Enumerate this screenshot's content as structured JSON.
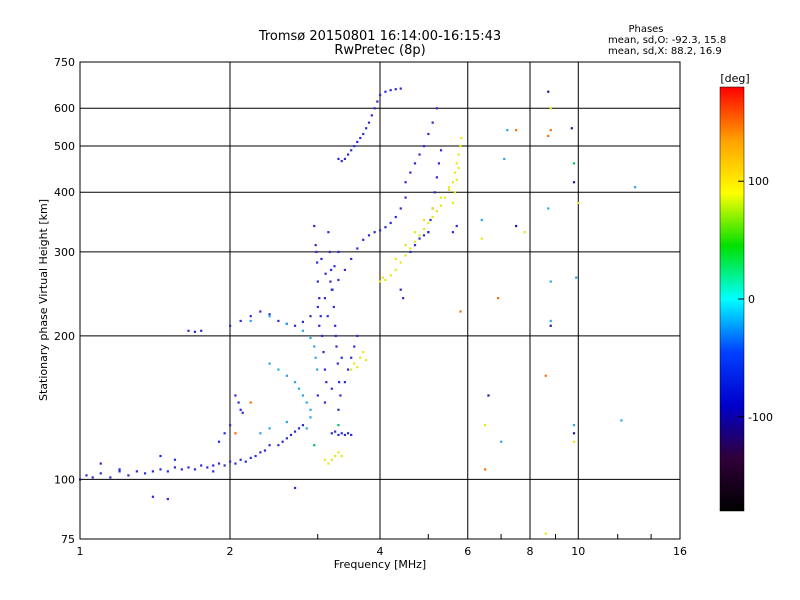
{
  "chart_data": {
    "type": "scatter",
    "title": "Tromsø 20150801 16:14:00-16:15:43",
    "subtitle": "RwPretec (8p)",
    "xlabel": "Frequency [MHz]",
    "ylabel": "Stationary phase Virtual Height [km]",
    "x_scale": "log",
    "y_scale": "log",
    "xlim": [
      1,
      16
    ],
    "ylim": [
      75,
      750
    ],
    "x_ticks": [
      "1",
      "2",
      "4",
      "6",
      "8",
      "10",
      "16"
    ],
    "y_ticks": [
      "75",
      "100",
      "200",
      "300",
      "400",
      "500",
      "600",
      "750"
    ],
    "grid": true,
    "phases_box": {
      "title": "Phases",
      "line1": "mean, sd,O: -92.3, 15.8",
      "line2": "mean, sd,X:  88.2, 16.9"
    },
    "colorbar": {
      "label": "[deg]",
      "ticks": [
        "100",
        "0",
        "-100"
      ],
      "colors": [
        "#ff0000",
        "#ffa000",
        "#ffff00",
        "#00e000",
        "#00ffff",
        "#0040ff",
        "#0000cc",
        "#30003a",
        "#000000"
      ]
    },
    "series": [
      {
        "color": "#2a2ad8",
        "points": [
          [
            1.0,
            100
          ],
          [
            1.03,
            102
          ],
          [
            1.06,
            101
          ],
          [
            1.1,
            103
          ],
          [
            1.15,
            101
          ],
          [
            1.2,
            104
          ],
          [
            1.25,
            102
          ],
          [
            1.3,
            104
          ],
          [
            1.35,
            103
          ],
          [
            1.4,
            104
          ],
          [
            1.45,
            105
          ],
          [
            1.5,
            104
          ],
          [
            1.55,
            106
          ],
          [
            1.6,
            105
          ],
          [
            1.65,
            106
          ],
          [
            1.7,
            105
          ],
          [
            1.75,
            107
          ],
          [
            1.8,
            106
          ],
          [
            1.85,
            107
          ],
          [
            1.9,
            108
          ],
          [
            1.95,
            107
          ],
          [
            2.0,
            109
          ],
          [
            2.05,
            108
          ],
          [
            2.1,
            110
          ],
          [
            2.15,
            109
          ],
          [
            2.2,
            111
          ],
          [
            2.25,
            112
          ],
          [
            2.3,
            114
          ],
          [
            2.35,
            115
          ],
          [
            2.4,
            118
          ],
          [
            1.1,
            108
          ],
          [
            1.2,
            105
          ],
          [
            1.45,
            112
          ],
          [
            1.55,
            110
          ],
          [
            1.85,
            104
          ],
          [
            1.4,
            92
          ],
          [
            1.5,
            91
          ],
          [
            2.7,
            96
          ],
          [
            2.05,
            150
          ],
          [
            2.08,
            145
          ],
          [
            2.1,
            140
          ],
          [
            2.12,
            138
          ],
          [
            2.0,
            130
          ],
          [
            1.95,
            125
          ],
          [
            1.9,
            120
          ],
          [
            2.5,
            118
          ],
          [
            2.55,
            120
          ],
          [
            2.6,
            122
          ],
          [
            2.65,
            124
          ],
          [
            2.7,
            126
          ],
          [
            2.75,
            128
          ],
          [
            2.8,
            130
          ],
          [
            1.65,
            205
          ],
          [
            1.7,
            204
          ],
          [
            1.75,
            205
          ],
          [
            2.0,
            210
          ],
          [
            2.1,
            215
          ],
          [
            2.2,
            220
          ],
          [
            2.3,
            225
          ],
          [
            2.4,
            222
          ],
          [
            2.5,
            215
          ],
          [
            2.6,
            212
          ],
          [
            2.7,
            210
          ],
          [
            2.8,
            214
          ],
          [
            2.9,
            220
          ],
          [
            3.0,
            230
          ],
          [
            3.1,
            240
          ],
          [
            3.2,
            250
          ],
          [
            3.3,
            262
          ],
          [
            3.4,
            275
          ],
          [
            3.5,
            290
          ],
          [
            3.6,
            305
          ],
          [
            3.7,
            318
          ],
          [
            3.8,
            325
          ],
          [
            3.9,
            330
          ],
          [
            4.0,
            333
          ],
          [
            4.1,
            338
          ],
          [
            4.2,
            345
          ],
          [
            4.3,
            355
          ],
          [
            4.4,
            370
          ],
          [
            4.5,
            390
          ],
          [
            2.95,
            340
          ],
          [
            2.97,
            310
          ],
          [
            2.99,
            285
          ],
          [
            3.0,
            260
          ],
          [
            3.02,
            240
          ],
          [
            3.04,
            220
          ],
          [
            3.06,
            200
          ],
          [
            3.08,
            185
          ],
          [
            3.1,
            170
          ],
          [
            3.12,
            160
          ],
          [
            3.15,
            330
          ],
          [
            3.17,
            300
          ],
          [
            3.19,
            275
          ],
          [
            3.21,
            250
          ],
          [
            3.23,
            230
          ],
          [
            3.25,
            210
          ],
          [
            3.27,
            190
          ],
          [
            3.29,
            175
          ],
          [
            3.31,
            160
          ],
          [
            3.33,
            150
          ],
          [
            2.98,
            300
          ],
          [
            3.05,
            290
          ],
          [
            3.11,
            270
          ],
          [
            3.18,
            260
          ],
          [
            3.24,
            280
          ],
          [
            3.3,
            300
          ],
          [
            3.02,
            210
          ],
          [
            3.14,
            220
          ],
          [
            3.26,
            200
          ],
          [
            3.35,
            180
          ],
          [
            3.0,
            150
          ],
          [
            3.1,
            145
          ],
          [
            3.2,
            155
          ],
          [
            3.3,
            140
          ],
          [
            3.4,
            160
          ],
          [
            3.45,
            170
          ],
          [
            3.5,
            180
          ],
          [
            3.55,
            190
          ],
          [
            3.6,
            200
          ],
          [
            3.2,
            125
          ],
          [
            3.25,
            126
          ],
          [
            3.3,
            124
          ],
          [
            3.35,
            125
          ],
          [
            3.4,
            124
          ],
          [
            3.45,
            125
          ],
          [
            3.5,
            124
          ],
          [
            3.3,
            470
          ],
          [
            3.35,
            465
          ],
          [
            3.4,
            470
          ],
          [
            3.45,
            480
          ],
          [
            3.5,
            490
          ],
          [
            3.55,
            500
          ],
          [
            3.6,
            510
          ],
          [
            3.65,
            520
          ],
          [
            3.7,
            530
          ],
          [
            3.75,
            545
          ],
          [
            3.8,
            560
          ],
          [
            3.85,
            580
          ],
          [
            3.9,
            600
          ],
          [
            3.95,
            620
          ],
          [
            4.0,
            640
          ],
          [
            4.1,
            650
          ],
          [
            4.2,
            655
          ],
          [
            4.3,
            658
          ],
          [
            4.4,
            660
          ],
          [
            4.5,
            420
          ],
          [
            4.6,
            440
          ],
          [
            4.7,
            460
          ],
          [
            4.8,
            480
          ],
          [
            4.9,
            500
          ],
          [
            5.0,
            530
          ],
          [
            5.1,
            560
          ],
          [
            5.2,
            600
          ],
          [
            5.0,
            330
          ],
          [
            5.05,
            350
          ],
          [
            5.1,
            370
          ],
          [
            5.15,
            400
          ],
          [
            5.2,
            430
          ],
          [
            5.25,
            460
          ],
          [
            5.3,
            490
          ],
          [
            4.6,
            300
          ],
          [
            4.7,
            310
          ],
          [
            4.8,
            320
          ],
          [
            4.9,
            325
          ],
          [
            5.0,
            330
          ],
          [
            4.4,
            250
          ],
          [
            4.45,
            240
          ],
          [
            5.6,
            330
          ],
          [
            5.7,
            340
          ]
        ]
      },
      {
        "color": "#2aa6e8",
        "points": [
          [
            2.4,
            175
          ],
          [
            2.5,
            170
          ],
          [
            2.6,
            165
          ],
          [
            2.7,
            160
          ],
          [
            2.75,
            155
          ],
          [
            2.8,
            150
          ],
          [
            2.85,
            145
          ],
          [
            2.9,
            140
          ],
          [
            2.2,
            215
          ],
          [
            2.4,
            220
          ],
          [
            2.6,
            212
          ],
          [
            2.8,
            205
          ],
          [
            2.9,
            198
          ],
          [
            2.95,
            190
          ],
          [
            2.97,
            180
          ],
          [
            2.99,
            170
          ],
          [
            2.3,
            125
          ],
          [
            2.4,
            128
          ],
          [
            2.6,
            132
          ],
          [
            2.85,
            128
          ],
          [
            2.9,
            135
          ],
          [
            7.2,
            540
          ],
          [
            8.7,
            370
          ],
          [
            8.8,
            260
          ],
          [
            8.8,
            215
          ],
          [
            7.1,
            470
          ],
          [
            6.4,
            350
          ],
          [
            9.8,
            130
          ],
          [
            9.9,
            265
          ],
          [
            13.0,
            410
          ],
          [
            12.2,
            133
          ],
          [
            7.0,
            120
          ]
        ]
      },
      {
        "color": "#e8e812",
        "points": [
          [
            3.1,
            110
          ],
          [
            3.15,
            108
          ],
          [
            3.2,
            110
          ],
          [
            3.25,
            112
          ],
          [
            3.3,
            114
          ],
          [
            3.35,
            112
          ],
          [
            3.5,
            170
          ],
          [
            3.55,
            175
          ],
          [
            3.6,
            172
          ],
          [
            3.65,
            180
          ],
          [
            3.7,
            185
          ],
          [
            3.75,
            178
          ],
          [
            4.0,
            260
          ],
          [
            4.05,
            265
          ],
          [
            4.1,
            262
          ],
          [
            4.2,
            268
          ],
          [
            4.3,
            275
          ],
          [
            4.4,
            285
          ],
          [
            4.5,
            295
          ],
          [
            4.6,
            305
          ],
          [
            4.7,
            315
          ],
          [
            4.8,
            325
          ],
          [
            4.9,
            335
          ],
          [
            5.0,
            345
          ],
          [
            5.1,
            355
          ],
          [
            5.2,
            365
          ],
          [
            5.3,
            375
          ],
          [
            5.4,
            390
          ],
          [
            5.5,
            405
          ],
          [
            5.6,
            420
          ],
          [
            5.65,
            440
          ],
          [
            5.7,
            460
          ],
          [
            5.75,
            480
          ],
          [
            5.8,
            500
          ],
          [
            5.82,
            520
          ],
          [
            4.3,
            290
          ],
          [
            4.5,
            310
          ],
          [
            4.7,
            330
          ],
          [
            4.9,
            350
          ],
          [
            5.1,
            370
          ],
          [
            5.3,
            390
          ],
          [
            5.5,
            410
          ],
          [
            5.6,
            380
          ],
          [
            5.65,
            400
          ],
          [
            5.7,
            425
          ],
          [
            5.75,
            450
          ],
          [
            6.5,
            130
          ],
          [
            8.8,
            600
          ],
          [
            8.6,
            77
          ],
          [
            10.0,
            380
          ],
          [
            9.8,
            120
          ],
          [
            6.4,
            320
          ],
          [
            7.8,
            330
          ]
        ]
      },
      {
        "color": "#ff6a00",
        "points": [
          [
            8.7,
            525
          ],
          [
            8.8,
            540
          ],
          [
            7.5,
            540
          ],
          [
            6.5,
            105
          ],
          [
            5.8,
            225
          ],
          [
            6.9,
            240
          ],
          [
            8.6,
            165
          ],
          [
            2.2,
            145
          ],
          [
            2.05,
            125
          ]
        ]
      },
      {
        "color": "#00c060",
        "points": [
          [
            9.8,
            460
          ],
          [
            3.3,
            130
          ],
          [
            2.95,
            118
          ]
        ]
      },
      {
        "color": "#1a1aa0",
        "points": [
          [
            8.7,
            650
          ],
          [
            9.7,
            545
          ],
          [
            9.8,
            420
          ],
          [
            7.5,
            340
          ],
          [
            8.8,
            210
          ],
          [
            6.6,
            150
          ],
          [
            9.8,
            125
          ]
        ]
      }
    ]
  }
}
